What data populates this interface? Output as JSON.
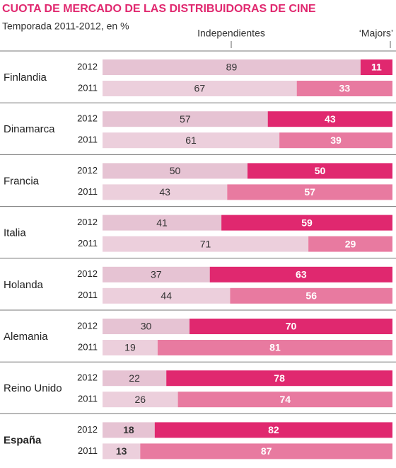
{
  "chart_data": {
    "type": "stacked-bar",
    "title": "CUOTA DE MERCADO DE LAS DISTRIBUIDORAS DE CINE",
    "subtitle": "Temporada 2011-2012, en %",
    "categories": [
      "Finlandia",
      "Dinamarca",
      "Francia",
      "Italia",
      "Holanda",
      "Alemania",
      "Reino Unido",
      "España"
    ],
    "years": [
      "2012",
      "2011"
    ],
    "highlight_index": 7,
    "xlim": [
      0,
      100
    ],
    "series": [
      {
        "name": "Independientes",
        "colors": [
          "#e6c3d3",
          "#eccfdc"
        ],
        "values": [
          [
            89,
            67
          ],
          [
            57,
            61
          ],
          [
            50,
            43
          ],
          [
            41,
            71
          ],
          [
            37,
            44
          ],
          [
            30,
            19
          ],
          [
            22,
            26
          ],
          [
            18,
            13
          ]
        ]
      },
      {
        "name": "‘Majors’",
        "colors": [
          "#e0286f",
          "#e87aa0"
        ],
        "values": [
          [
            11,
            33
          ],
          [
            43,
            39
          ],
          [
            50,
            57
          ],
          [
            59,
            29
          ],
          [
            63,
            56
          ],
          [
            70,
            81
          ],
          [
            78,
            74
          ],
          [
            82,
            87
          ]
        ]
      }
    ]
  }
}
